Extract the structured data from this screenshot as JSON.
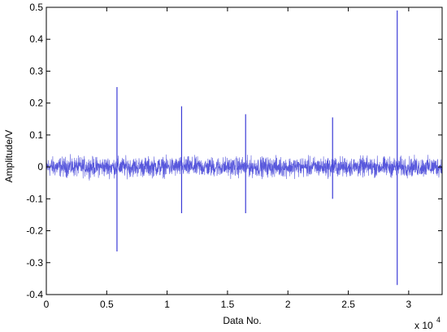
{
  "chart_data": {
    "type": "line",
    "title": "",
    "xlabel": "Data No.",
    "ylabel": "Amplitude/V",
    "x_exponent_label": "x 10",
    "x_exponent": "4",
    "xlim": [
      0,
      32768
    ],
    "ylim": [
      -0.4,
      0.5
    ],
    "x_ticks": [
      0,
      5000,
      10000,
      15000,
      20000,
      25000,
      30000
    ],
    "x_tick_labels": [
      "0",
      "0.5",
      "1",
      "1.5",
      "2",
      "2.5",
      "3"
    ],
    "y_ticks": [
      0.5,
      0.4,
      0.3,
      0.2,
      0.1,
      0,
      -0.1,
      -0.2,
      -0.3,
      -0.4
    ],
    "y_tick_labels": [
      "0.5",
      "0.4",
      "0.3",
      "0.2",
      "0.1",
      "0",
      "-0.1",
      "-0.2",
      "-0.3",
      "-0.4"
    ],
    "grid": false,
    "legend": "none",
    "series": [
      {
        "color": "#3b3bd6",
        "noise_amplitude": 0.045,
        "samples": 32768,
        "spikes": [
          {
            "x": 5850,
            "max": 0.25,
            "min": -0.265
          },
          {
            "x": 11200,
            "max": 0.19,
            "min": -0.145
          },
          {
            "x": 16500,
            "max": 0.165,
            "min": -0.145
          },
          {
            "x": 23700,
            "max": 0.155,
            "min": -0.1
          },
          {
            "x": 29050,
            "max": 0.49,
            "min": -0.37
          }
        ]
      }
    ]
  }
}
